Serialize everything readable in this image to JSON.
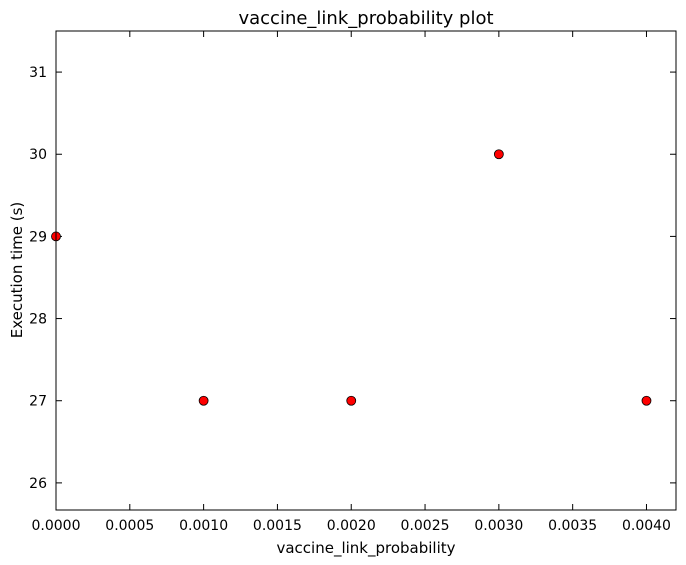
{
  "chart_data": {
    "type": "scatter",
    "title": "vaccine_link_probability plot",
    "xlabel": "vaccine_link_probability",
    "ylabel": "Execution time (s)",
    "xlim": [
      0.0,
      0.0042
    ],
    "ylim": [
      25.67,
      31.5
    ],
    "xticks": [
      "0.0000",
      "0.0005",
      "0.0010",
      "0.0015",
      "0.0020",
      "0.0025",
      "0.0030",
      "0.0035",
      "0.0040"
    ],
    "yticks": [
      "26",
      "27",
      "28",
      "29",
      "30",
      "31"
    ],
    "grid": false,
    "marker_color": "#ff0000",
    "marker_edge_color": "#000000",
    "series": [
      {
        "x": [
          0.0,
          0.001,
          0.002,
          0.003,
          0.004
        ],
        "y": [
          29,
          27,
          27,
          30,
          27
        ]
      }
    ]
  }
}
